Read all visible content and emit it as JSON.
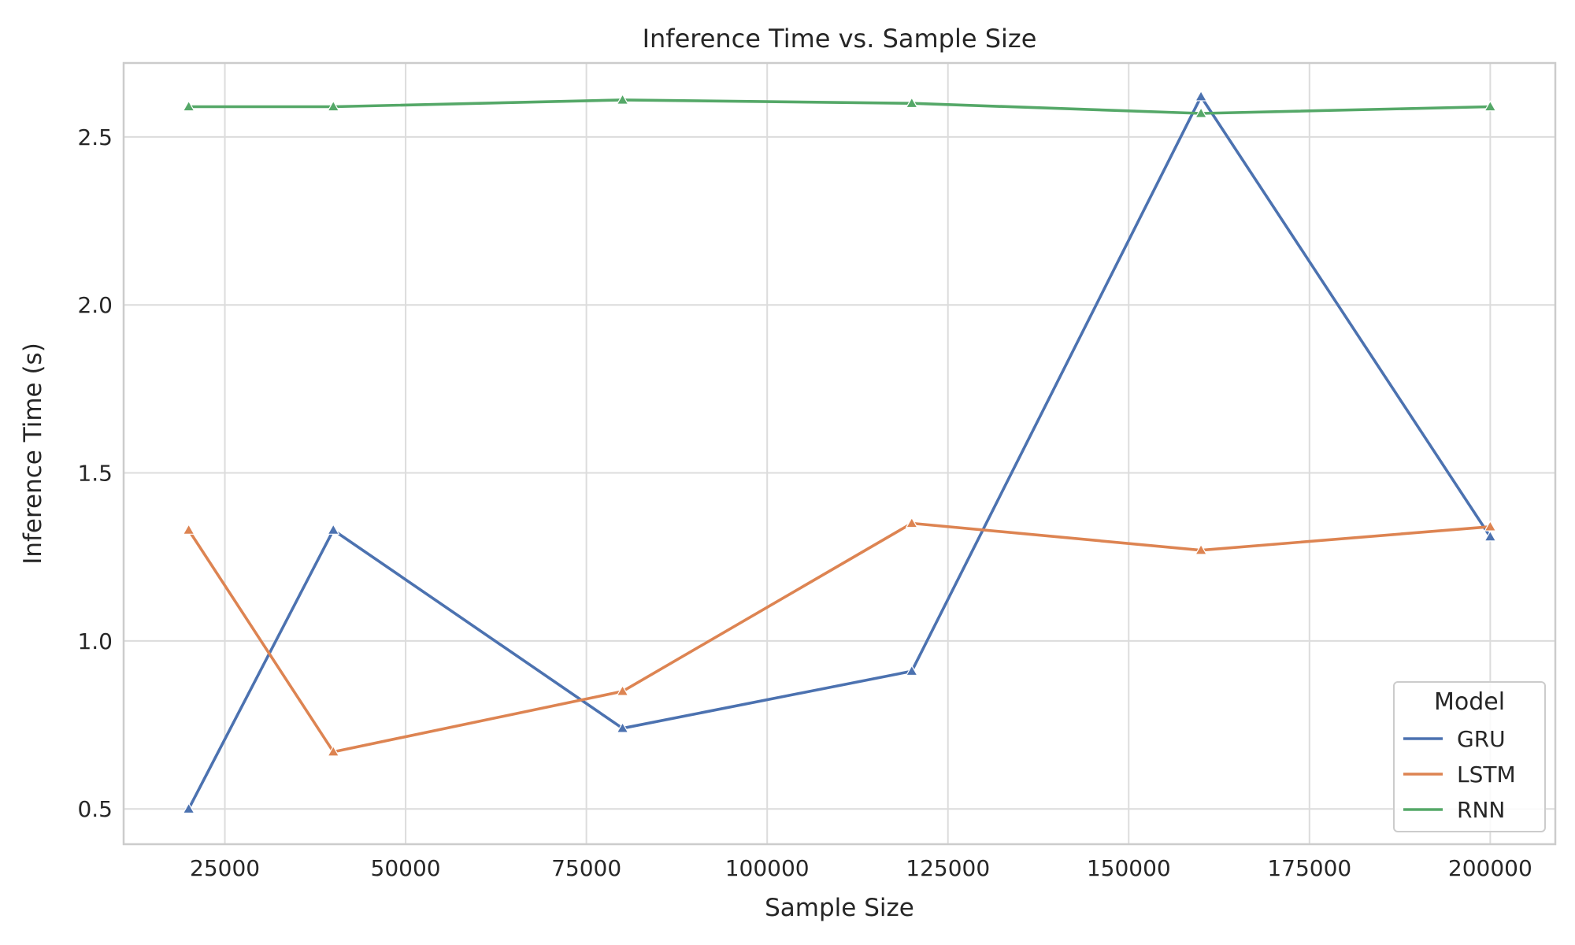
{
  "chart_data": {
    "type": "line",
    "title": "Inference Time vs. Sample Size",
    "xlabel": "Sample Size",
    "ylabel": "Inference Time (s)",
    "x": [
      20000,
      40000,
      80000,
      120000,
      160000,
      200000
    ],
    "xlim": [
      11000,
      209000
    ],
    "ylim": [
      0.395,
      2.72
    ],
    "xticks": [
      25000,
      50000,
      75000,
      100000,
      125000,
      150000,
      175000,
      200000
    ],
    "xtick_labels": [
      "25000",
      "50000",
      "75000",
      "100000",
      "125000",
      "150000",
      "175000",
      "200000"
    ],
    "yticks": [
      0.5,
      1.0,
      1.5,
      2.0,
      2.5
    ],
    "ytick_labels": [
      "0.5",
      "1.0",
      "1.5",
      "2.0",
      "2.5"
    ],
    "grid": true,
    "marker": "triangle",
    "legend": {
      "title": "Model",
      "placement": "bottom-right"
    },
    "series": [
      {
        "name": "GRU",
        "color": "#4c72b0",
        "values": [
          0.5,
          1.33,
          0.74,
          0.91,
          2.62,
          1.31
        ]
      },
      {
        "name": "LSTM",
        "color": "#dd8452",
        "values": [
          1.33,
          0.67,
          0.85,
          1.35,
          1.27,
          1.34
        ]
      },
      {
        "name": "RNN",
        "color": "#55a868",
        "values": [
          2.59,
          2.59,
          2.61,
          2.6,
          2.57,
          2.59
        ]
      }
    ]
  }
}
